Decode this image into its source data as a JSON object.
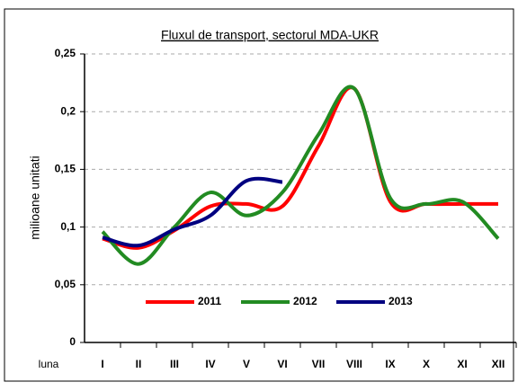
{
  "chart_data": {
    "type": "line",
    "title": "Fluxul de transport, sectorul MDA-UKR",
    "y_label": "milioane unitati",
    "x_label": "luna",
    "categories": [
      "I",
      "II",
      "III",
      "IV",
      "V",
      "VI",
      "VII",
      "VIII",
      "IX",
      "X",
      "XI",
      "XII"
    ],
    "series": [
      {
        "name": "2011",
        "color": "#ff0000",
        "values": [
          0.09,
          0.082,
          0.097,
          0.118,
          0.12,
          0.118,
          0.17,
          0.22,
          0.122,
          0.12,
          0.12,
          0.12
        ]
      },
      {
        "name": "2012",
        "color": "#228b22",
        "values": [
          0.096,
          0.068,
          0.1,
          0.13,
          0.11,
          0.13,
          0.18,
          0.22,
          0.125,
          0.12,
          0.122,
          0.09
        ]
      },
      {
        "name": "2013",
        "color": "#000080",
        "values": [
          0.091,
          0.084,
          0.098,
          0.11,
          0.14,
          0.139,
          null,
          null,
          null,
          null,
          null,
          null
        ]
      }
    ],
    "ylim": [
      0,
      0.25
    ],
    "yticks": [
      {
        "value": 0,
        "label": "0"
      },
      {
        "value": 0.05,
        "label": "0,05"
      },
      {
        "value": 0.1,
        "label": "0,1"
      },
      {
        "value": 0.15,
        "label": "0,15"
      },
      {
        "value": 0.2,
        "label": "0,2"
      },
      {
        "value": 0.25,
        "label": "0,25"
      }
    ],
    "grid": true,
    "smooth": true
  }
}
